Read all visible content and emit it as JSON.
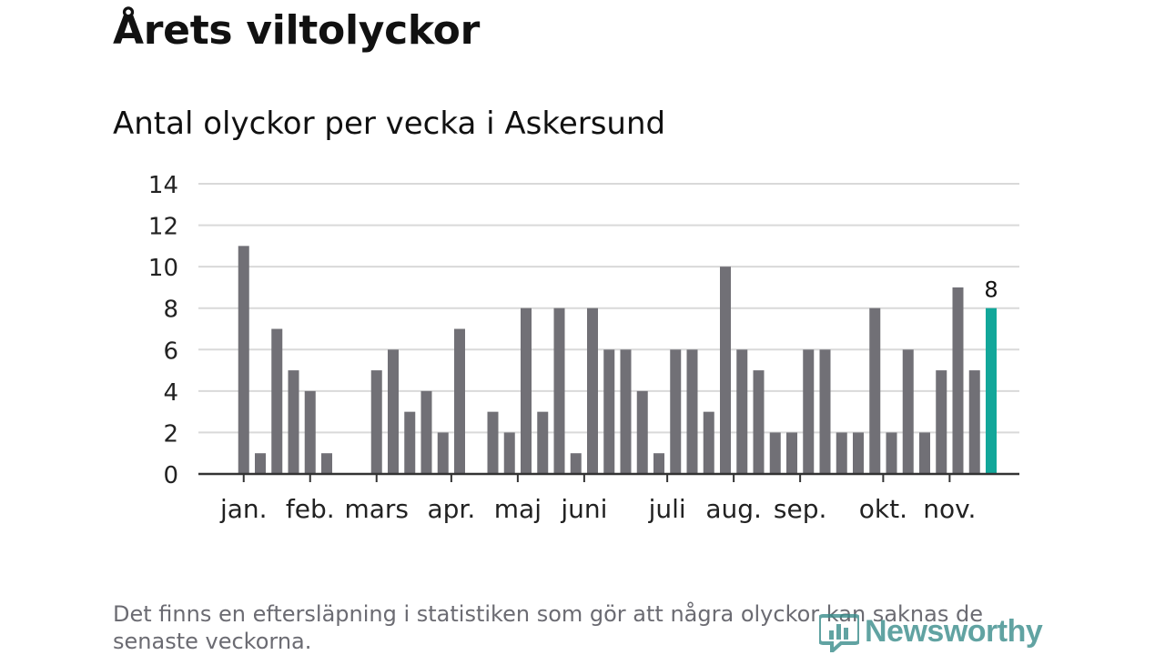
{
  "title": "Årets viltolyckor",
  "subtitle": "Antal olyckor per vecka i Askersund",
  "footnote": "Det finns en eftersläpning i statistiken som gör att några olyckor kan saknas de senaste veckorna.",
  "logo": {
    "text": "Newsworthy",
    "icon": "newsworthy-logo-icon",
    "color": "#3a8d8c"
  },
  "colors": {
    "bar": "#717076",
    "highlight": "#12a79a",
    "grid": "#d9d9d9",
    "axis": "#333333",
    "text": "#111111"
  },
  "chart_data": {
    "type": "bar",
    "title": "Antal olyckor per vecka i Askersund",
    "xlabel": "",
    "ylabel": "",
    "ylim": [
      0,
      14
    ],
    "yticks": [
      "0",
      "2",
      "4",
      "6",
      "8",
      "10",
      "12",
      "14"
    ],
    "values": [
      0,
      11,
      1,
      7,
      5,
      4,
      1,
      0,
      0,
      5,
      6,
      3,
      4,
      2,
      7,
      0,
      3,
      2,
      8,
      3,
      8,
      1,
      8,
      6,
      6,
      4,
      1,
      6,
      6,
      3,
      10,
      6,
      5,
      2,
      2,
      6,
      6,
      2,
      2,
      8,
      2,
      6,
      2,
      5,
      9,
      5,
      8
    ],
    "highlight_index": 46,
    "highlight_label": "8",
    "month_labels": [
      {
        "label": "jan.",
        "week": 1
      },
      {
        "label": "feb.",
        "week": 5
      },
      {
        "label": "mars",
        "week": 9
      },
      {
        "label": "apr.",
        "week": 13.5
      },
      {
        "label": "maj",
        "week": 17.5
      },
      {
        "label": "juni",
        "week": 21.5
      },
      {
        "label": "juli",
        "week": 26.5
      },
      {
        "label": "aug.",
        "week": 30.5
      },
      {
        "label": "sep.",
        "week": 34.5
      },
      {
        "label": "okt.",
        "week": 39.5
      },
      {
        "label": "nov.",
        "week": 43.5
      }
    ],
    "legend": "none",
    "grid": true
  }
}
